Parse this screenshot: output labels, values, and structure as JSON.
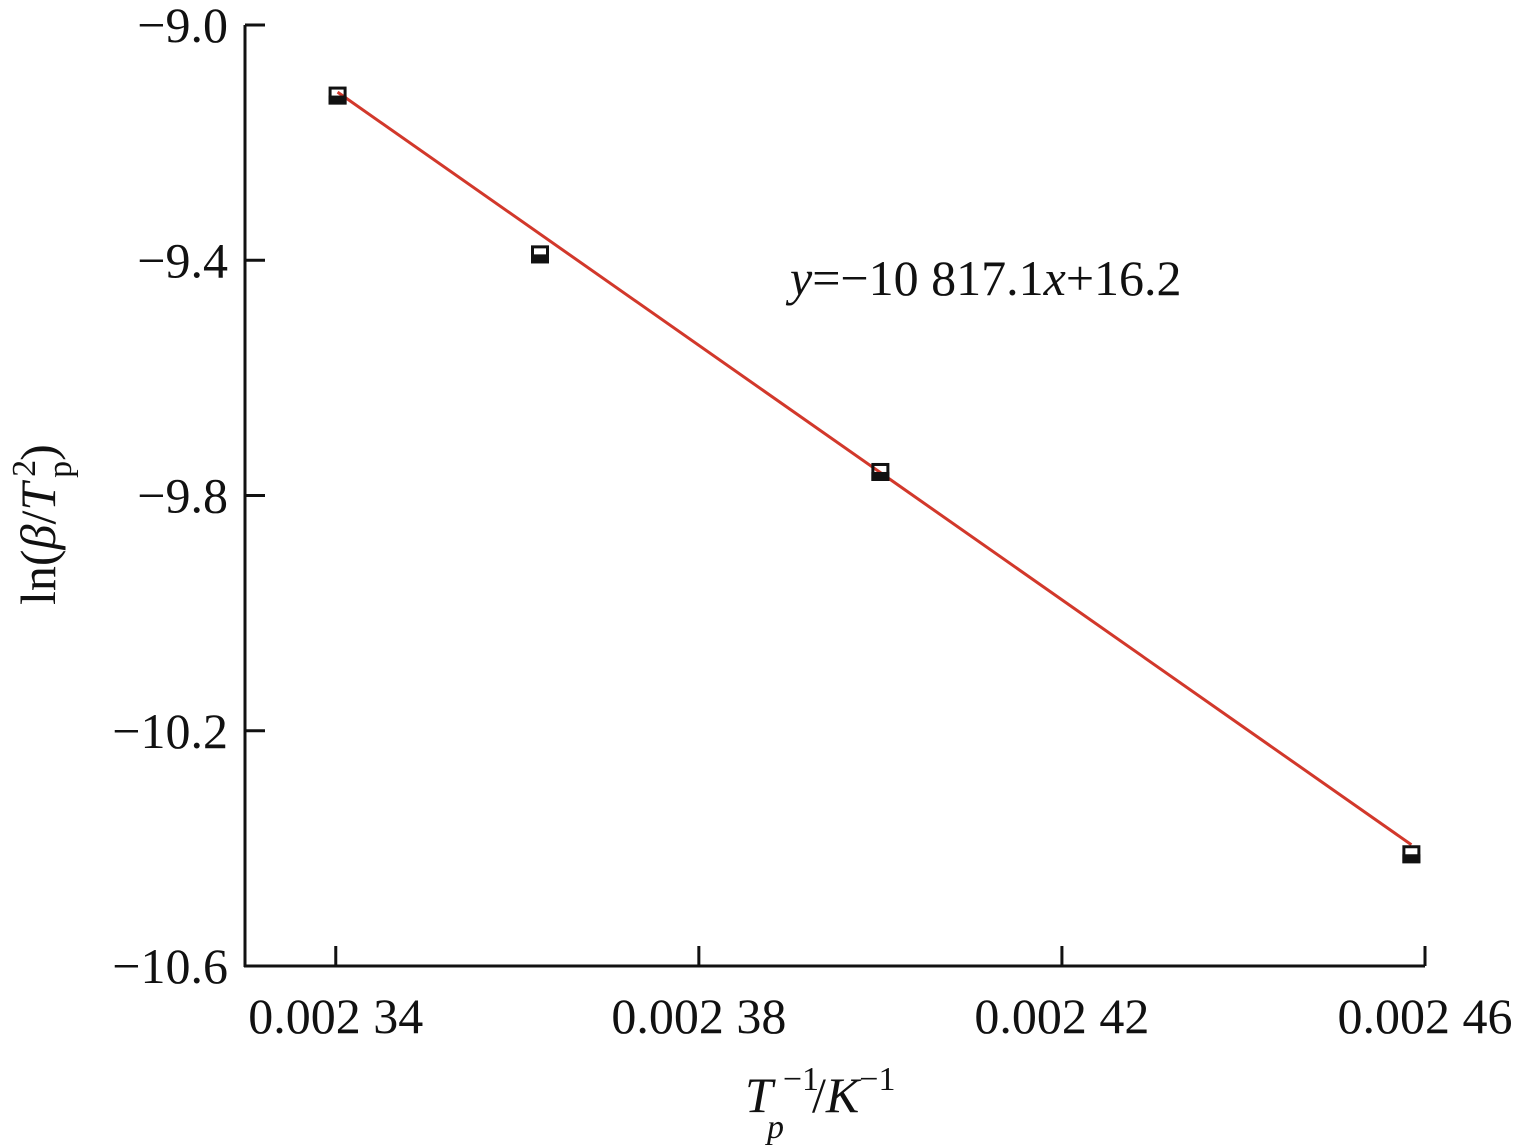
{
  "chart_data": {
    "type": "scatter",
    "x": [
      0.0023402,
      0.0023625,
      0.0024,
      0.0024585
    ],
    "values": [
      -9.12,
      -9.39,
      -9.76,
      -10.41
    ],
    "color": "#111111",
    "fit": {
      "slope": -10817.1,
      "intercept": 16.2,
      "color": "#d2382b"
    },
    "annotation": [
      "y",
      "=−10 817.1",
      "x",
      "+16.2"
    ],
    "xlabel": [
      "T",
      "−1",
      "p",
      "/",
      "K",
      "−1"
    ],
    "ylabel": [
      "ln(",
      "β",
      "/",
      "T",
      "2",
      "p",
      ")"
    ],
    "xlim": [
      0.00233,
      0.00246
    ],
    "ylim": [
      -10.6,
      -9.0
    ],
    "xticks": [
      {
        "value": 0.00234,
        "label": "0.002 34"
      },
      {
        "value": 0.00238,
        "label": "0.002 38"
      },
      {
        "value": 0.00242,
        "label": "0.002 42"
      },
      {
        "value": 0.00246,
        "label": "0.002 46"
      }
    ],
    "yticks": [
      {
        "value": -9.0,
        "label": "−9.0"
      },
      {
        "value": -9.4,
        "label": "−9.4"
      },
      {
        "value": -9.8,
        "label": "−9.8"
      },
      {
        "value": -10.2,
        "label": "−10.2"
      },
      {
        "value": -10.6,
        "label": "−10.6"
      }
    ],
    "grid": false
  }
}
